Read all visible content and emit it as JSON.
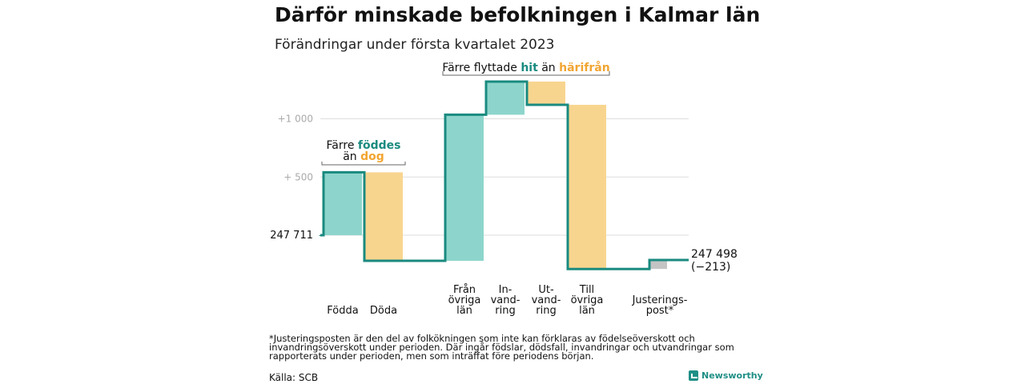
{
  "title": "Därför minskade befolkningen i Kalmar län",
  "subtitle": "Förändringar under första kvartalet 2023",
  "chart_data": {
    "type": "waterfall",
    "start_value": 247711,
    "start_label": "247 711",
    "end_value": 247498,
    "end_label": "247 498",
    "end_change_label": "(−213)",
    "y_tick_labels": [
      "+1 000",
      "+ 500"
    ],
    "y_ticks": [
      1000,
      500
    ],
    "steps": [
      {
        "label": "Födda",
        "change": 540,
        "color": "#8dd5cc"
      },
      {
        "label": "Döda",
        "change": -760,
        "color": "#f8d58f"
      },
      {
        "label": "Från\növriga\nlän",
        "change": 1255,
        "color": "#8dd5cc"
      },
      {
        "label": "In-\nvand-\nring",
        "change": 285,
        "color": "#8dd5cc"
      },
      {
        "label": "Ut-\nvand-\nring",
        "change": -200,
        "color": "#f8d58f"
      },
      {
        "label": "Till\növriga\nlän",
        "change": -1410,
        "color": "#f8d58f"
      },
      {
        "label": "Justerings-\npost*",
        "change": 77,
        "color": "#c4c4c4"
      }
    ],
    "annotations": [
      {
        "line1_parts": [
          "Färre ",
          "föddes"
        ],
        "line2_parts": [
          "än ",
          "dog"
        ]
      },
      {
        "line1_parts": [
          "Färre flyttade ",
          "hit",
          " än ",
          "härifrån"
        ]
      }
    ]
  },
  "colors": {
    "line": "#1a8a7f",
    "teal_text": "#1a8a7f",
    "orange_text": "#f2a531",
    "grid": "#dddddd",
    "tick_text": "#aaaaaa"
  },
  "footnote": "*Justeringsposten är den del av folkökningen som inte kan förklaras av födelseöverskott och invandringsöverskott under perioden. Där ingår födslar, dödsfall, invandringar och utvandringar som rapporterats under perioden, men som inträffat före periodens början.",
  "source": "Källa: SCB",
  "brand": "Newsworthy"
}
